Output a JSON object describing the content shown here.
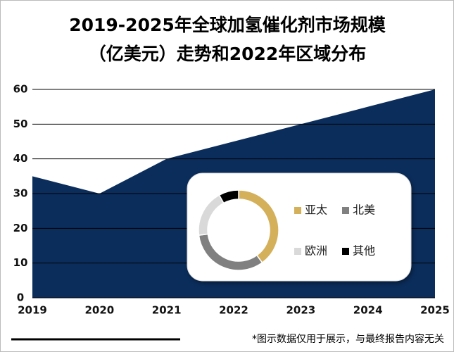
{
  "chart_data": [
    {
      "type": "area",
      "title_lines": [
        "2019-2025年全球加氢催化剂市场规模",
        "（亿美元）走势和2022年区域分布"
      ],
      "categories": [
        "2019",
        "2020",
        "2021",
        "2022",
        "2023",
        "2024",
        "2025"
      ],
      "values": [
        35,
        30,
        40,
        45,
        50,
        55,
        60
      ],
      "color": "#0b2d5b",
      "ylim": [
        0,
        60
      ],
      "yticks": [
        0,
        10,
        20,
        30,
        40,
        50,
        60
      ],
      "grid": true,
      "footnote": "*图示数据仅用于展示，与最终报告内容无关"
    },
    {
      "type": "donut",
      "categories": [
        "亚太",
        "北美",
        "欧洲",
        "其他"
      ],
      "values": [
        40,
        33,
        19,
        8
      ],
      "colors": [
        "#d4b05b",
        "#808080",
        "#d9d9d9",
        "#000000"
      ]
    }
  ]
}
